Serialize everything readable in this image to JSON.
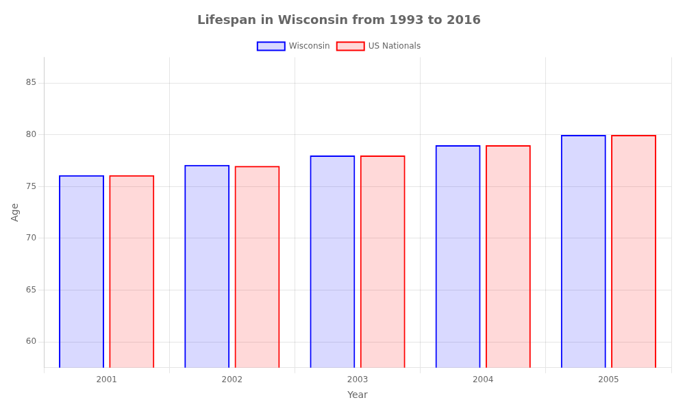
{
  "chart_data": {
    "type": "bar",
    "title": "Lifespan in Wisconsin from 1993 to 2016",
    "categories": [
      "2001",
      "2002",
      "2003",
      "2004",
      "2005"
    ],
    "series": [
      {
        "name": "Wisconsin",
        "color": "#0000ff",
        "values": [
          76.1,
          77.1,
          78.0,
          79.0,
          80.0
        ]
      },
      {
        "name": "US Nationals",
        "color": "#ff0000",
        "values": [
          76.1,
          77.0,
          78.0,
          79.0,
          80.0
        ]
      }
    ],
    "xlabel": "Year",
    "ylabel": "Age",
    "ylim": [
      57.5,
      87.5
    ],
    "yticks": [
      60,
      65,
      70,
      75,
      80,
      85
    ],
    "grid": true,
    "legend": "top"
  }
}
